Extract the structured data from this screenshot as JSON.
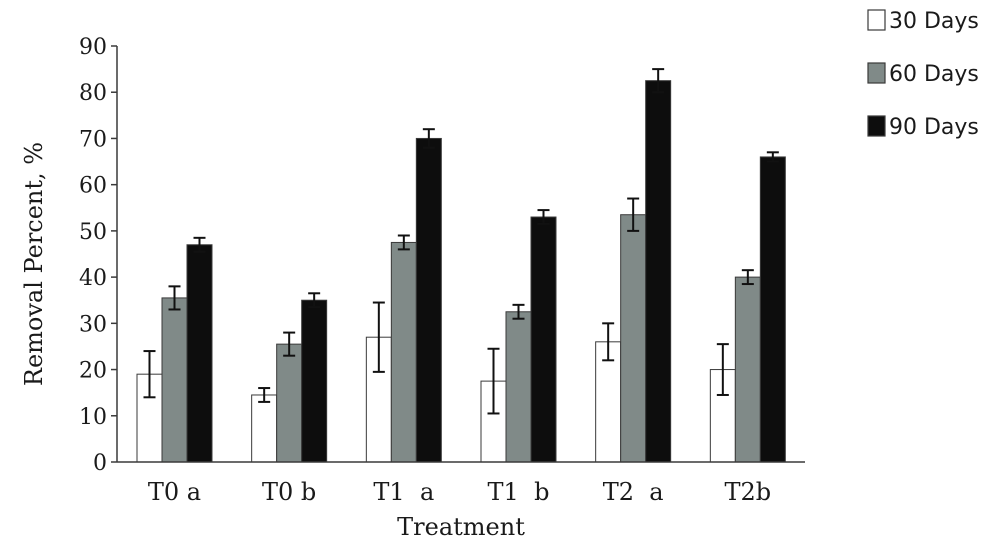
{
  "chart_data": {
    "type": "bar",
    "title": "",
    "xlabel": "Treatment",
    "ylabel": "Removal Percent, %",
    "ylim": [
      0,
      90
    ],
    "yticks": [
      0,
      10,
      20,
      30,
      40,
      50,
      60,
      70,
      80,
      90
    ],
    "grid": false,
    "legend_position": "top-right",
    "categories": [
      "T0 a",
      "T0 b",
      "T1  a",
      "T1  b",
      "T2  a",
      "T2b"
    ],
    "series": [
      {
        "name": "30 Days",
        "color": "#ffffff",
        "values": [
          19,
          14.5,
          27,
          17.5,
          26,
          20
        ],
        "errors": [
          5,
          1.5,
          7.5,
          7,
          4,
          5.5
        ]
      },
      {
        "name": "60 Days",
        "color": "#808a88",
        "values": [
          35.5,
          25.5,
          47.5,
          32.5,
          53.5,
          40
        ],
        "errors": [
          2.5,
          2.5,
          1.5,
          1.5,
          3.5,
          1.5
        ]
      },
      {
        "name": "90 Days",
        "color": "#0d0d0d",
        "values": [
          47,
          35,
          70,
          53,
          82.5,
          66
        ],
        "errors": [
          1.5,
          1.5,
          2,
          1.5,
          2.5,
          1
        ]
      }
    ]
  }
}
